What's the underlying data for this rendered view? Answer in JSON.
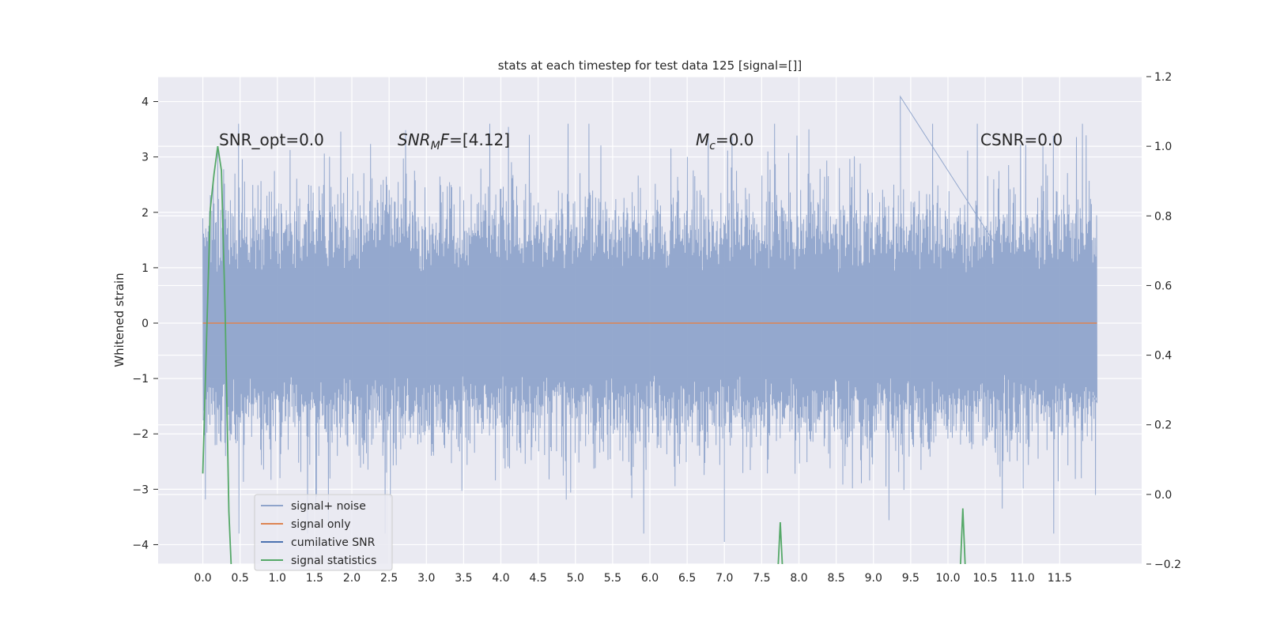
{
  "chart_data": {
    "type": "line",
    "title": "stats at each timestep for test data 125 [signal=[]]",
    "ylabel": "Whitened strain",
    "xlim": [
      -0.6,
      12.6
    ],
    "ylim": [
      -4.35,
      4.45
    ],
    "y2lim": [
      -0.2,
      1.2
    ],
    "x_ticks": [
      "0.0",
      "0.5",
      "1.0",
      "1.5",
      "2.0",
      "2.5",
      "3.0",
      "3.5",
      "4.0",
      "4.5",
      "5.0",
      "5.5",
      "6.0",
      "6.5",
      "7.0",
      "7.5",
      "8.0",
      "8.5",
      "9.0",
      "9.5",
      "10.0",
      "10.5",
      "11.0",
      "11.5"
    ],
    "y_ticks": [
      "4",
      "3",
      "2",
      "1",
      "0",
      "−1",
      "−2",
      "−3",
      "−4"
    ],
    "y2_ticks": [
      "1.2",
      "1.0",
      "0.8",
      "0.6",
      "0.4",
      "0.2",
      "0.0",
      "−0.2"
    ],
    "annotations": {
      "snr_opt": "SNR_opt=0.0",
      "snr_mf_main": "SNR",
      "snr_mf_sub": "M",
      "snr_mf_rest": "F=[4.12]",
      "mc_main": "M",
      "mc_sub": "c",
      "mc_rest": "=0.0",
      "csnr": "CSNR=0.0"
    },
    "grid": true,
    "legend_position": "lower-left",
    "series": [
      {
        "name": "signal+ noise",
        "color": "#8fa4cb",
        "description": "whitened noise, approx ±1.8 sigma envelope, spikes to ~4.1",
        "x_range": [
          0.0,
          12.0
        ],
        "peak_max": [
          9.36,
          4.09
        ],
        "peak_min": [
          7.0,
          -3.95
        ]
      },
      {
        "name": "signal only",
        "color": "#dd8452",
        "x": [
          0.0,
          12.0
        ],
        "y": [
          0.0,
          0.0
        ]
      },
      {
        "name": "cumilative SNR",
        "color": "#4c72b0",
        "x": [],
        "y": []
      },
      {
        "name": "signal statistics",
        "color": "#55a868",
        "axis": "right",
        "x": [
          0.0,
          0.05,
          0.1,
          0.15,
          0.2,
          0.25,
          0.3,
          0.35,
          0.4,
          7.7,
          7.75,
          7.8,
          10.15,
          10.2,
          10.25
        ],
        "y": [
          0.06,
          0.45,
          0.82,
          0.92,
          1.0,
          0.93,
          0.52,
          -0.05,
          -0.3,
          -0.3,
          -0.08,
          -0.3,
          -0.3,
          -0.04,
          -0.3
        ]
      }
    ]
  }
}
